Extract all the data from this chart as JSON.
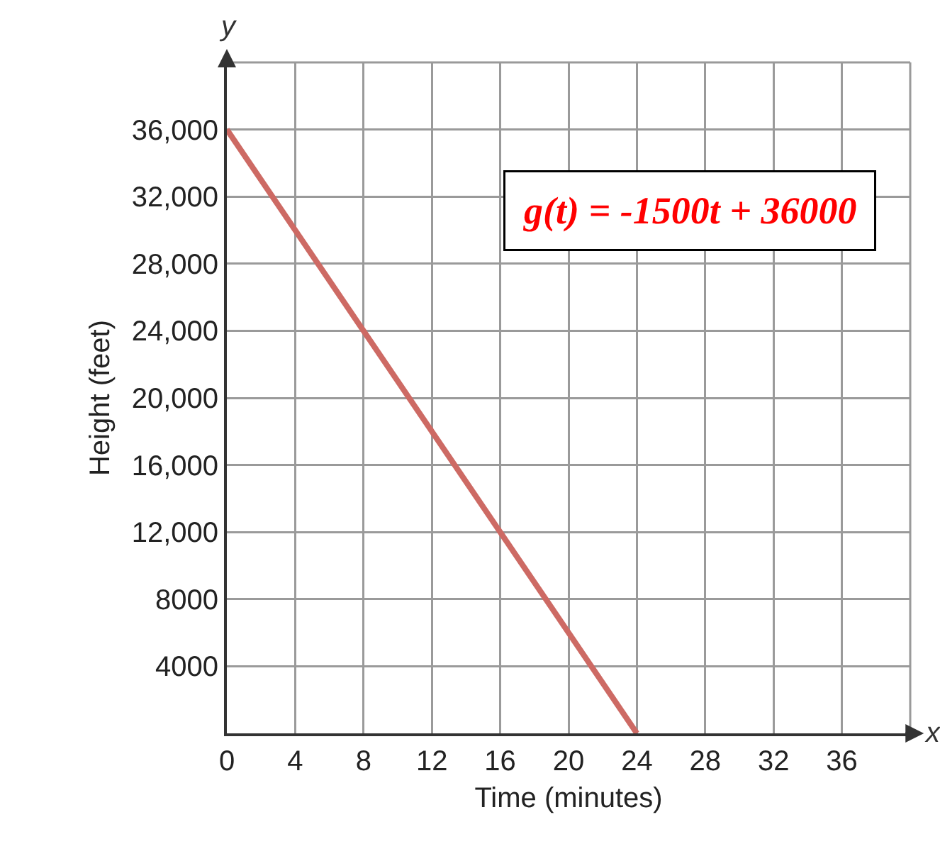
{
  "chart_data": {
    "type": "line",
    "xlabel": "Time (minutes)",
    "ylabel": "Height (feet)",
    "annotations": [
      "g(t) = -1500t + 36000",
      "x",
      "y"
    ],
    "series": [
      {
        "x": [
          0,
          24
        ],
        "values": [
          36000,
          0
        ],
        "color": "#cd6a64"
      }
    ],
    "xlim": [
      0,
      40
    ],
    "xticks": [
      0,
      4,
      8,
      12,
      16,
      20,
      24,
      28,
      32,
      36
    ],
    "ylim": [
      0,
      40000
    ],
    "yticks": [
      {
        "value": 0,
        "label": null
      },
      {
        "value": 4000,
        "label": "4000"
      },
      {
        "value": 8000,
        "label": "8000"
      },
      {
        "value": 12000,
        "label": "12,000"
      },
      {
        "value": 16000,
        "label": "16,000"
      },
      {
        "value": 20000,
        "label": "20,000"
      },
      {
        "value": 24000,
        "label": "24,000"
      },
      {
        "value": 28000,
        "label": "28,000"
      },
      {
        "value": 32000,
        "label": "32,000"
      },
      {
        "value": 36000,
        "label": "36,000"
      }
    ],
    "grid": true
  }
}
